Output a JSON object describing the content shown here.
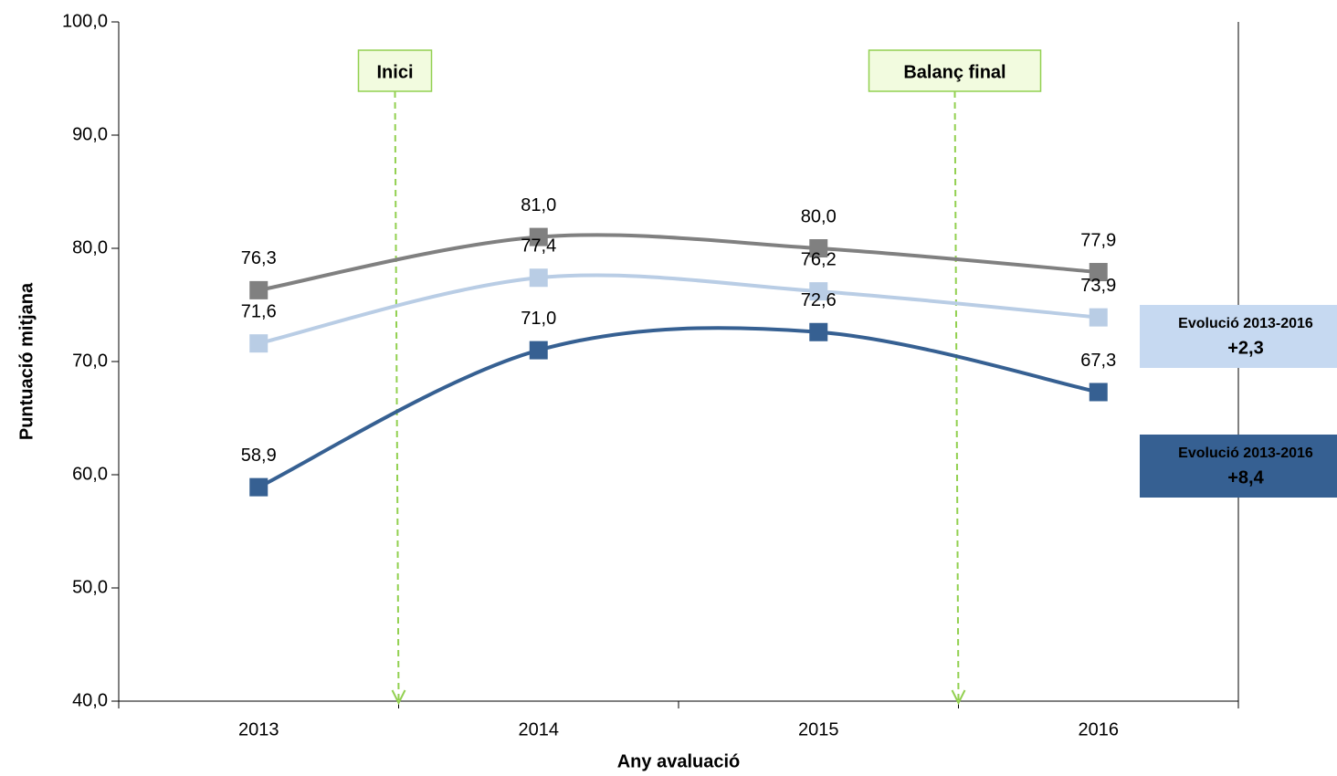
{
  "chart_data": {
    "type": "line",
    "x_label": "Any avaluació",
    "y_label": "Puntuació mitjana",
    "categories": [
      "2013",
      "2014",
      "2015",
      "2016"
    ],
    "series": [
      {
        "color": "#808080",
        "values": [
          76.3,
          81.0,
          80.0,
          77.9
        ],
        "value_labels": [
          "76,3",
          "81,0",
          "80,0",
          "77,9"
        ]
      },
      {
        "color": "#b9cde5",
        "values": [
          71.6,
          77.4,
          76.2,
          73.9
        ],
        "value_labels": [
          "71,6",
          "77,4",
          "76,2",
          "73,9"
        ]
      },
      {
        "color": "#366092",
        "values": [
          58.9,
          71.0,
          72.6,
          67.3
        ],
        "value_labels": [
          "58,9",
          "71,0",
          "72,6",
          "67,3"
        ]
      }
    ],
    "ylim": [
      40,
      100
    ],
    "yticks": [
      {
        "value": 40,
        "label": "40,0"
      },
      {
        "value": 50,
        "label": "50,0"
      },
      {
        "value": 60,
        "label": "60,0"
      },
      {
        "value": 70,
        "label": "70,0"
      },
      {
        "value": 80,
        "label": "80,0"
      },
      {
        "value": 90,
        "label": "90,0"
      },
      {
        "value": 100,
        "label": "100,0"
      }
    ],
    "annotations": [
      "Inici",
      "Balanç final"
    ],
    "evolution_boxes": [
      {
        "title": "Evolució 2013-2016",
        "value": "+2,3",
        "color": "#c6d9f1",
        "text_color": "#000000"
      },
      {
        "title": "Evolució 2013-2016",
        "value": "+8,4",
        "color": "#366092",
        "text_color": "#ffffff"
      }
    ]
  }
}
